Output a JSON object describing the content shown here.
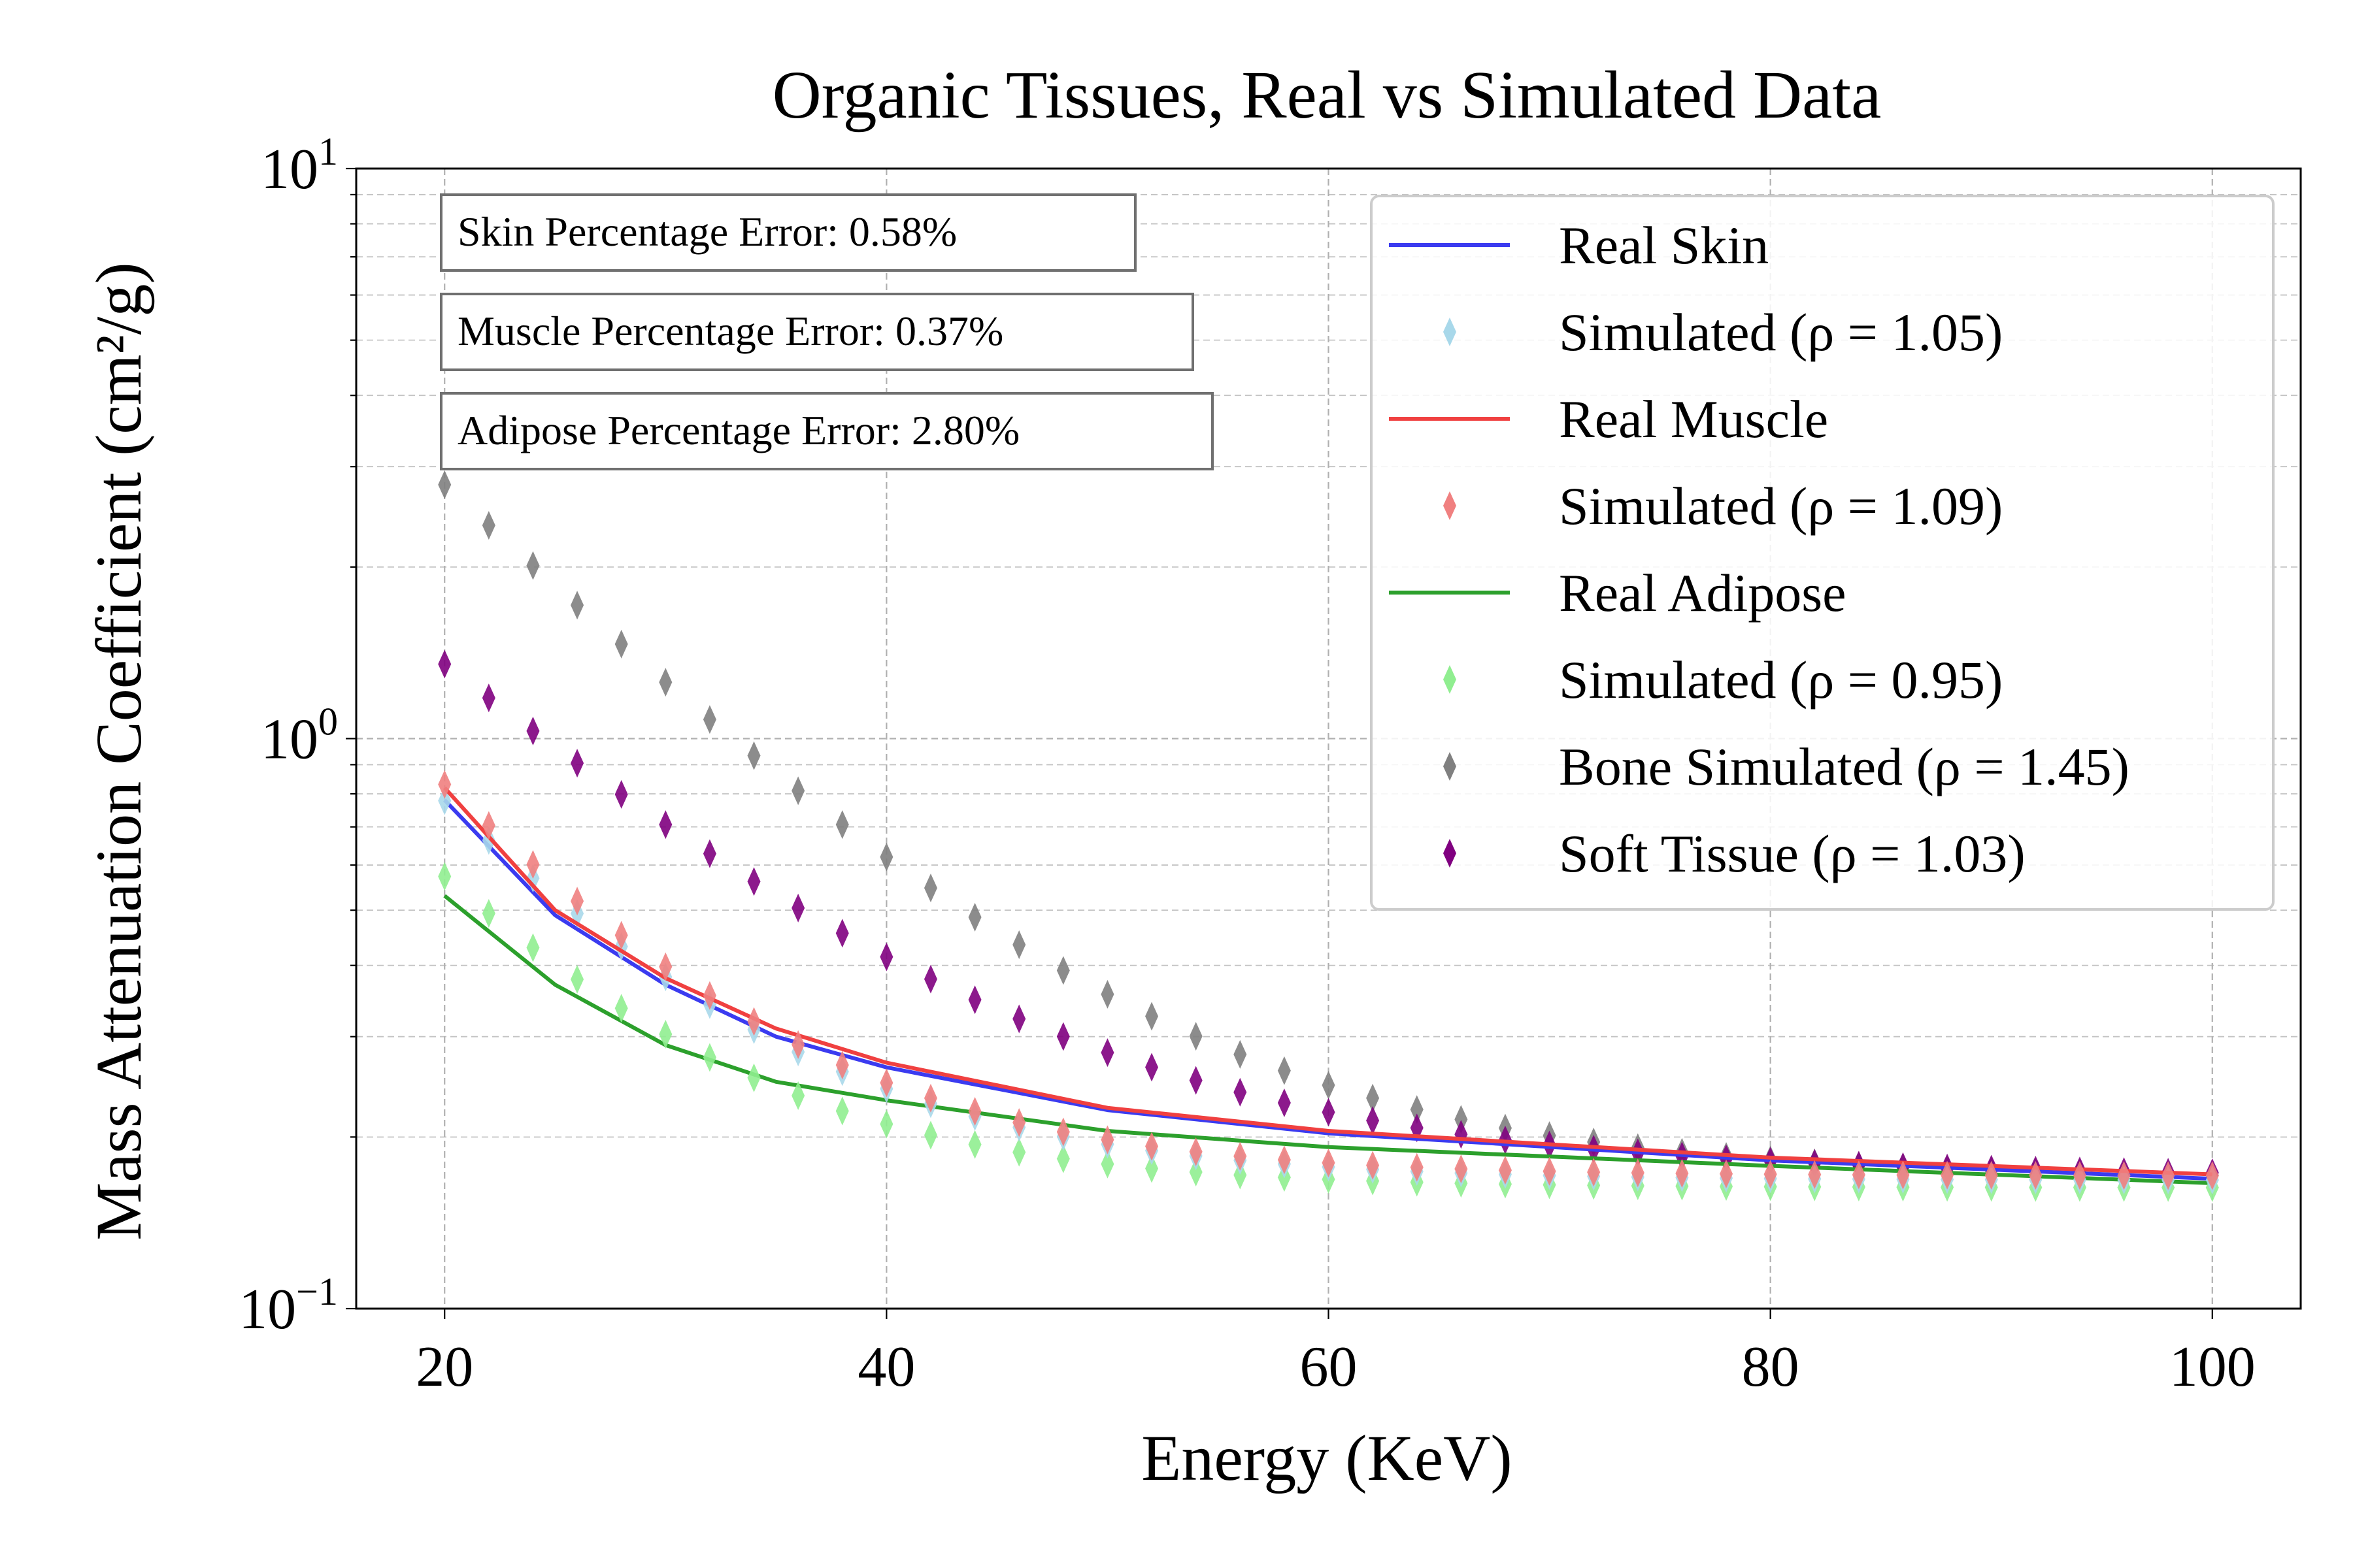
{
  "chart_data": {
    "type": "line",
    "title": "Organic Tissues, Real vs Simulated Data",
    "xlabel": "Energy (KeV)",
    "ylabel": "Mass Attenuation Coefficient (cm²/g)",
    "xlim": [
      16,
      104
    ],
    "ylim": [
      0.1,
      10
    ],
    "yscale": "log",
    "xticks": [
      20,
      40,
      60,
      80,
      100
    ],
    "yticks": [
      {
        "value": 0.1,
        "base": "10",
        "exp": "−1"
      },
      {
        "value": 1,
        "base": "10",
        "exp": "0"
      },
      {
        "value": 10,
        "base": "10",
        "exp": "1"
      }
    ],
    "grid": true,
    "legend_position": "top-right",
    "annotations": [
      "Skin Percentage Error: 0.58%",
      "Muscle Percentage Error: 0.37%",
      "Adipose Percentage Error: 2.80%"
    ],
    "series": [
      {
        "name": "Real Skin",
        "kind": "line",
        "color": "#3b3bf0",
        "x": [
          20,
          25,
          30,
          35,
          40,
          50,
          60,
          80,
          100
        ],
        "y": [
          0.78,
          0.49,
          0.37,
          0.3,
          0.265,
          0.223,
          0.203,
          0.182,
          0.169
        ]
      },
      {
        "name": "Simulated (ρ = 1.05)",
        "kind": "diamond",
        "color": "#a8d8ea",
        "params": {
          "base": 0.168,
          "amp": 0.61,
          "k": 0.1048
        }
      },
      {
        "name": "Real Muscle",
        "kind": "line",
        "color": "#f04040",
        "x": [
          20,
          25,
          30,
          35,
          40,
          50,
          60,
          80,
          100
        ],
        "y": [
          0.82,
          0.5,
          0.38,
          0.31,
          0.27,
          0.225,
          0.205,
          0.184,
          0.172
        ]
      },
      {
        "name": "Simulated (ρ = 1.09)",
        "kind": "diamond",
        "color": "#f08080",
        "params": {
          "base": 0.171,
          "amp": 0.66,
          "k": 0.1068
        }
      },
      {
        "name": "Real Adipose",
        "kind": "line",
        "color": "#2ca02c",
        "x": [
          20,
          25,
          30,
          35,
          40,
          50,
          60,
          80,
          100
        ],
        "y": [
          0.53,
          0.37,
          0.29,
          0.25,
          0.232,
          0.205,
          0.192,
          0.178,
          0.166
        ]
      },
      {
        "name": "Simulated (ρ = 0.95)",
        "kind": "diamond",
        "color": "#90ee90",
        "params": {
          "base": 0.163,
          "amp": 0.41,
          "k": 0.1075
        }
      },
      {
        "name": "Bone Simulated (ρ = 1.45)",
        "kind": "diamond",
        "color": "#808080",
        "params": {
          "base": 0.169,
          "amp": 2.62,
          "k": 0.088
        }
      },
      {
        "name": "Soft Tissue (ρ = 1.03)",
        "kind": "diamond",
        "color": "#800080",
        "params": {
          "base": 0.171,
          "amp": 1.18,
          "k": 0.079
        }
      }
    ]
  }
}
